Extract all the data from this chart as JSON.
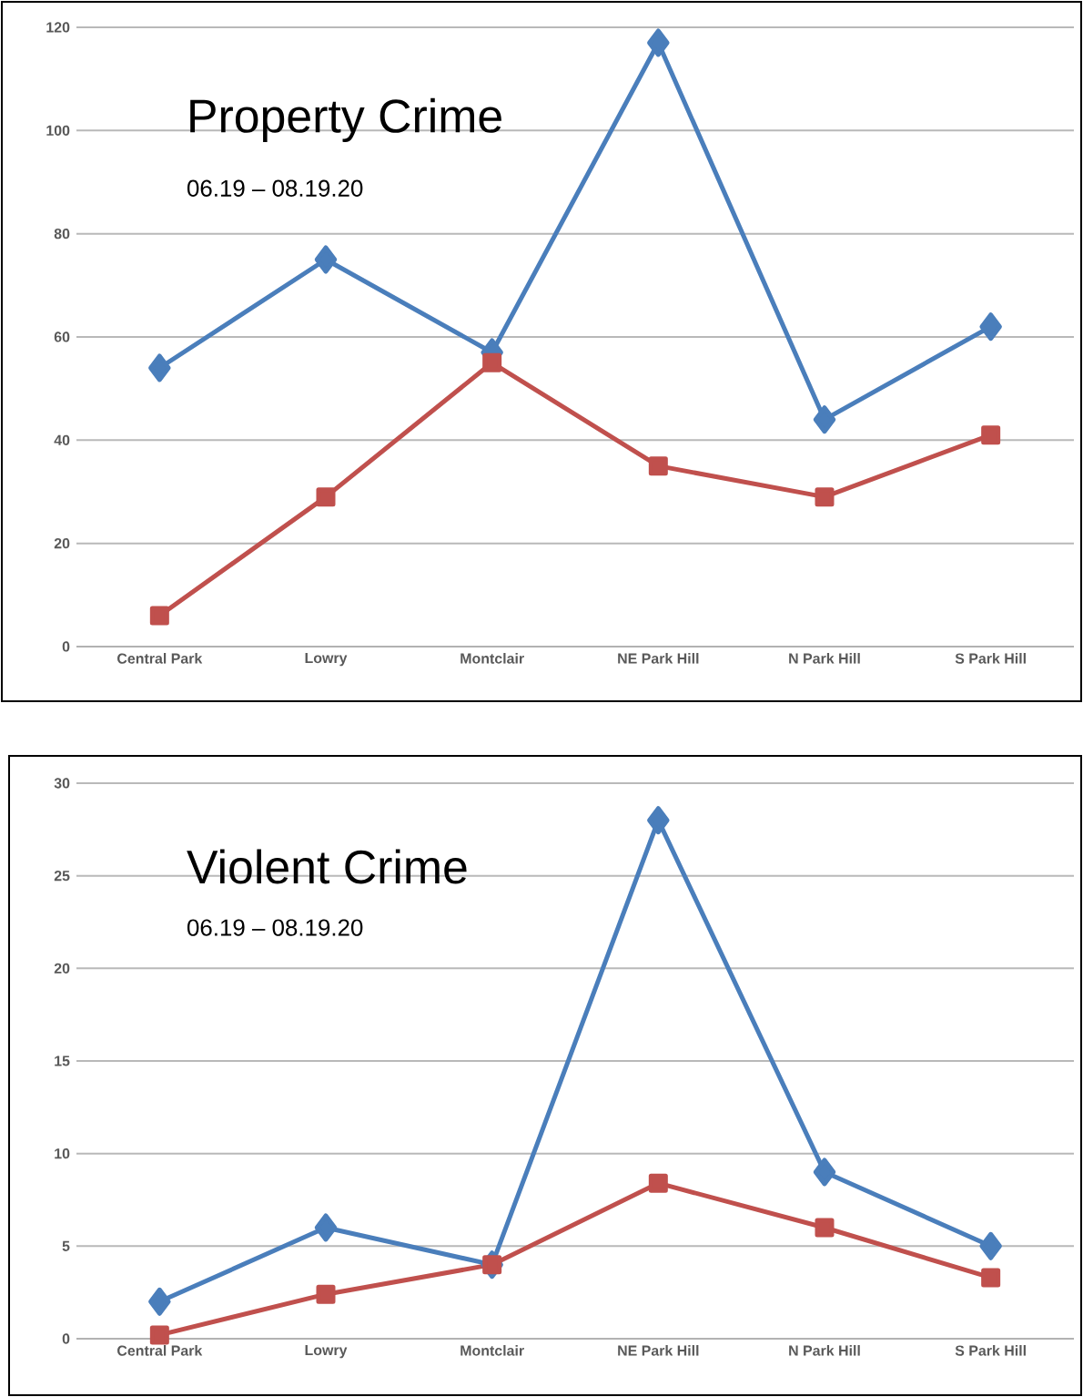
{
  "chart_data": [
    {
      "type": "line",
      "title": "Property Crime",
      "subtitle": "06.19 – 08.19.20",
      "categories": [
        "Central Park",
        "Lowry",
        "Montclair",
        "NE Park Hill",
        "N Park Hill",
        "S Park Hill"
      ],
      "series": [
        {
          "color": "#4a7ebb",
          "marker": "diamond",
          "values": [
            54,
            75,
            57,
            117,
            44,
            62
          ]
        },
        {
          "color": "#c0504d",
          "marker": "square",
          "values": [
            6,
            29,
            55,
            35,
            29,
            41
          ]
        }
      ],
      "ylim": [
        0,
        120
      ],
      "yticks": [
        0,
        20,
        40,
        60,
        80,
        100,
        120
      ],
      "grid": "y",
      "line_style": "solid"
    },
    {
      "type": "line",
      "title": "Violent Crime",
      "subtitle": "06.19 – 08.19.20",
      "categories": [
        "Central Park",
        "Lowry",
        "Montclair",
        "NE Park Hill",
        "N Park Hill",
        "S Park Hill"
      ],
      "series": [
        {
          "color": "#4a7ebb",
          "marker": "diamond",
          "values": [
            2,
            6,
            4,
            28,
            9,
            5
          ]
        },
        {
          "color": "#c0504d",
          "marker": "square",
          "values": [
            0.2,
            2.4,
            4,
            8.4,
            6,
            3.3
          ]
        }
      ],
      "ylim": [
        0,
        30
      ],
      "yticks": [
        0,
        5,
        10,
        15,
        20,
        25,
        30
      ],
      "grid": "y",
      "line_style": "solid"
    }
  ]
}
